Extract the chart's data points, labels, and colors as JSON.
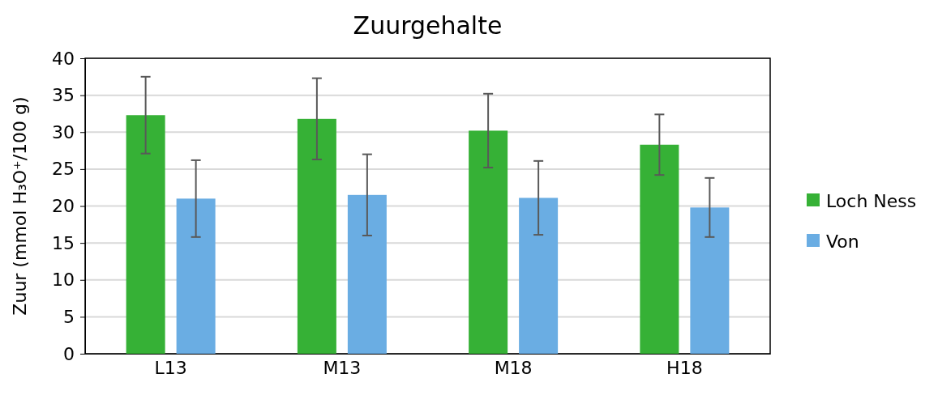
{
  "chart_data": {
    "type": "bar",
    "title": "Zuurgehalte",
    "ylabel": "Zuur (mmol H₃O⁺/100 g)",
    "categories": [
      "L13",
      "M13",
      "M18",
      "H18"
    ],
    "series": [
      {
        "name": "Loch Ness",
        "color": "#36b136",
        "values": [
          32.3,
          31.8,
          30.2,
          28.3
        ],
        "errors": [
          5.2,
          5.5,
          5.0,
          4.1
        ]
      },
      {
        "name": "Von",
        "color": "#6aade3",
        "values": [
          21.0,
          21.5,
          21.1,
          19.8
        ],
        "errors": [
          5.2,
          5.5,
          5.0,
          4.0
        ]
      }
    ],
    "ylim": [
      0,
      40
    ],
    "yticks": [
      0,
      5,
      10,
      15,
      20,
      25,
      30,
      35,
      40
    ],
    "grid": "y",
    "legend": "right"
  }
}
